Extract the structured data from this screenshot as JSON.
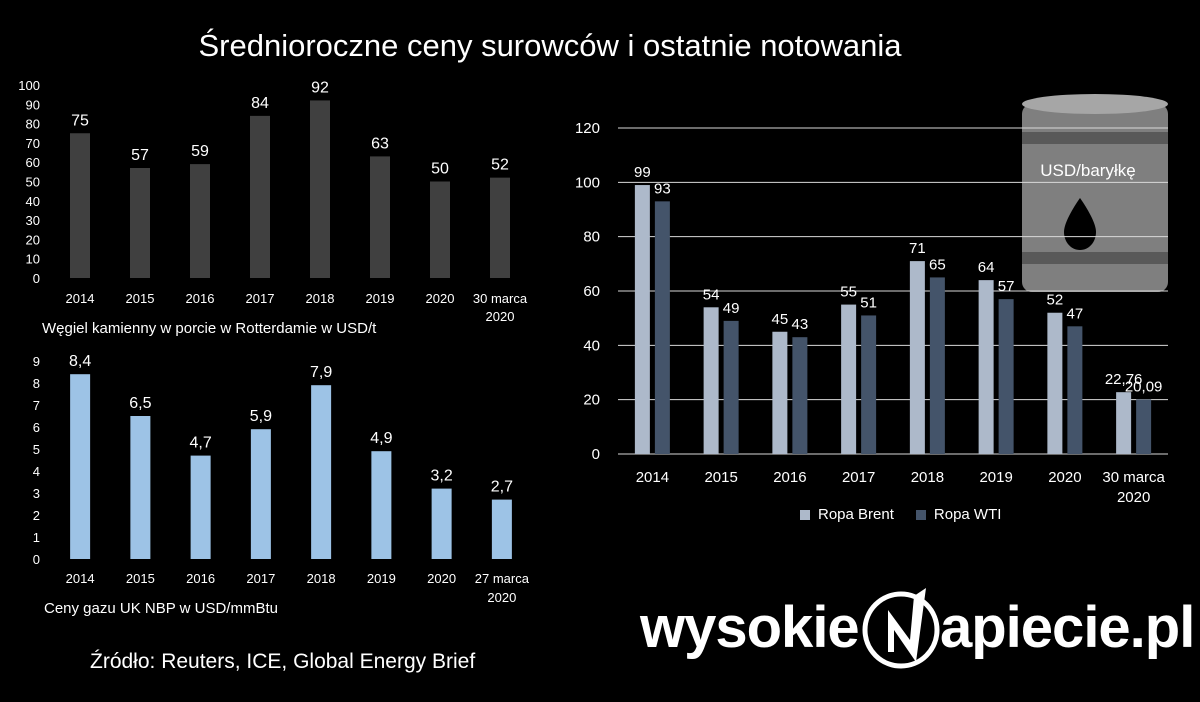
{
  "title": "Średnioroczne ceny surowców i ostatnie notowania",
  "source": "Źródło:  Reuters, ICE, Global Energy Brief",
  "logo": {
    "left": "wysokie",
    "right": "apiecie.pl"
  },
  "chart_data": [
    {
      "id": "coal",
      "type": "bar",
      "caption": "Węgiel kamienny w porcie w Rotterdamie w USD/t",
      "categories": [
        "2014",
        "2015",
        "2016",
        "2017",
        "2018",
        "2019",
        "2020",
        "30 marca 2020"
      ],
      "values": [
        75,
        57,
        59,
        84,
        92,
        63,
        50,
        52
      ],
      "value_labels": [
        "75",
        "57",
        "59",
        "84",
        "92",
        "63",
        "50",
        "52"
      ],
      "ylim": [
        0,
        100
      ],
      "yticks": [
        0,
        10,
        20,
        30,
        40,
        50,
        60,
        70,
        80,
        90,
        100
      ],
      "color": "#404040",
      "grid": false
    },
    {
      "id": "gas",
      "type": "bar",
      "caption": "Ceny gazu UK NBP w USD/mmBtu",
      "categories": [
        "2014",
        "2015",
        "2016",
        "2017",
        "2018",
        "2019",
        "2020",
        "27 marca 2020"
      ],
      "values": [
        8.4,
        6.5,
        4.7,
        5.9,
        7.9,
        4.9,
        3.2,
        2.7
      ],
      "value_labels": [
        "8,4",
        "6,5",
        "4,7",
        "5,9",
        "7,9",
        "4,9",
        "3,2",
        "2,7"
      ],
      "ylim": [
        0,
        9
      ],
      "yticks": [
        0,
        1,
        2,
        3,
        4,
        5,
        6,
        7,
        8,
        9
      ],
      "color": "#9dc3e6",
      "grid": false
    },
    {
      "id": "oil",
      "type": "bar",
      "annotation": "USD/baryłkę",
      "categories": [
        "2014",
        "2015",
        "2016",
        "2017",
        "2018",
        "2019",
        "2020",
        "30 marca 2020"
      ],
      "series": [
        {
          "name": "Ropa Brent",
          "color": "#adb9ca",
          "values": [
            99,
            54,
            45,
            55,
            71,
            64,
            52,
            22.76
          ],
          "value_labels": [
            "99",
            "54",
            "45",
            "55",
            "71",
            "64",
            "52",
            "22,76"
          ]
        },
        {
          "name": "Ropa WTI",
          "color": "#44546a",
          "values": [
            93,
            49,
            43,
            51,
            65,
            57,
            47,
            20.09
          ],
          "value_labels": [
            "93",
            "49",
            "43",
            "51",
            "65",
            "57",
            "47",
            "20,09"
          ]
        }
      ],
      "ylim": [
        0,
        120
      ],
      "yticks": [
        0,
        20,
        40,
        60,
        80,
        100,
        120
      ],
      "grid": true,
      "legend": "bottom"
    }
  ]
}
